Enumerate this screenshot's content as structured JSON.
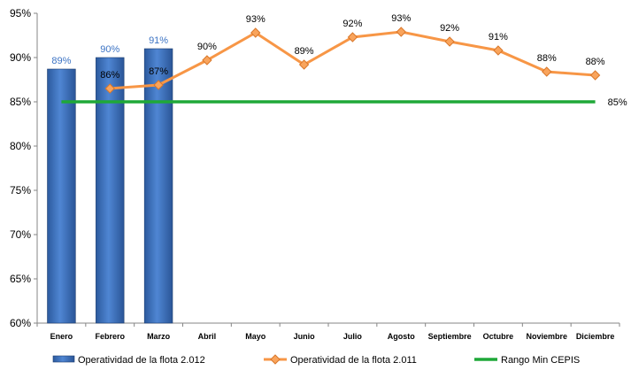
{
  "chart_data": {
    "type": "bar",
    "categories": [
      "Enero",
      "Febrero",
      "Marzo",
      "Abril",
      "Mayo",
      "Junio",
      "Julio",
      "Agosto",
      "Septiembre",
      "Octubre",
      "Noviembre",
      "Diciembre"
    ],
    "ylim": [
      60,
      95
    ],
    "yticks": [
      "60%",
      "65%",
      "70%",
      "75%",
      "80%",
      "85%",
      "90%",
      "95%"
    ],
    "grid": false,
    "legend_position": "bottom",
    "series": [
      {
        "name": "Operatividad de la flota 2.012",
        "type": "bar",
        "color": "#3d74c4",
        "values": [
          88.7,
          90,
          91,
          null,
          null,
          null,
          null,
          null,
          null,
          null,
          null,
          null
        ],
        "labels": [
          "89%",
          "90%",
          "91%",
          "",
          "",
          "",
          "",
          "",
          "",
          "",
          "",
          ""
        ]
      },
      {
        "name": "Operatividad de la flota 2.011",
        "type": "line",
        "color": "#f79646",
        "values": [
          null,
          86.5,
          86.9,
          89.7,
          92.8,
          89.2,
          92.3,
          92.9,
          91.8,
          90.8,
          88.4,
          88.0
        ],
        "labels": [
          "",
          "86%",
          "87%",
          "90%",
          "93%",
          "89%",
          "92%",
          "93%",
          "92%",
          "91%",
          "88%",
          "88%"
        ]
      },
      {
        "name": "Rango Min CEPIS",
        "type": "line",
        "color": "#1fa838",
        "values": [
          85,
          85,
          85,
          85,
          85,
          85,
          85,
          85,
          85,
          85,
          85,
          85
        ],
        "end_label": "85%"
      }
    ]
  }
}
